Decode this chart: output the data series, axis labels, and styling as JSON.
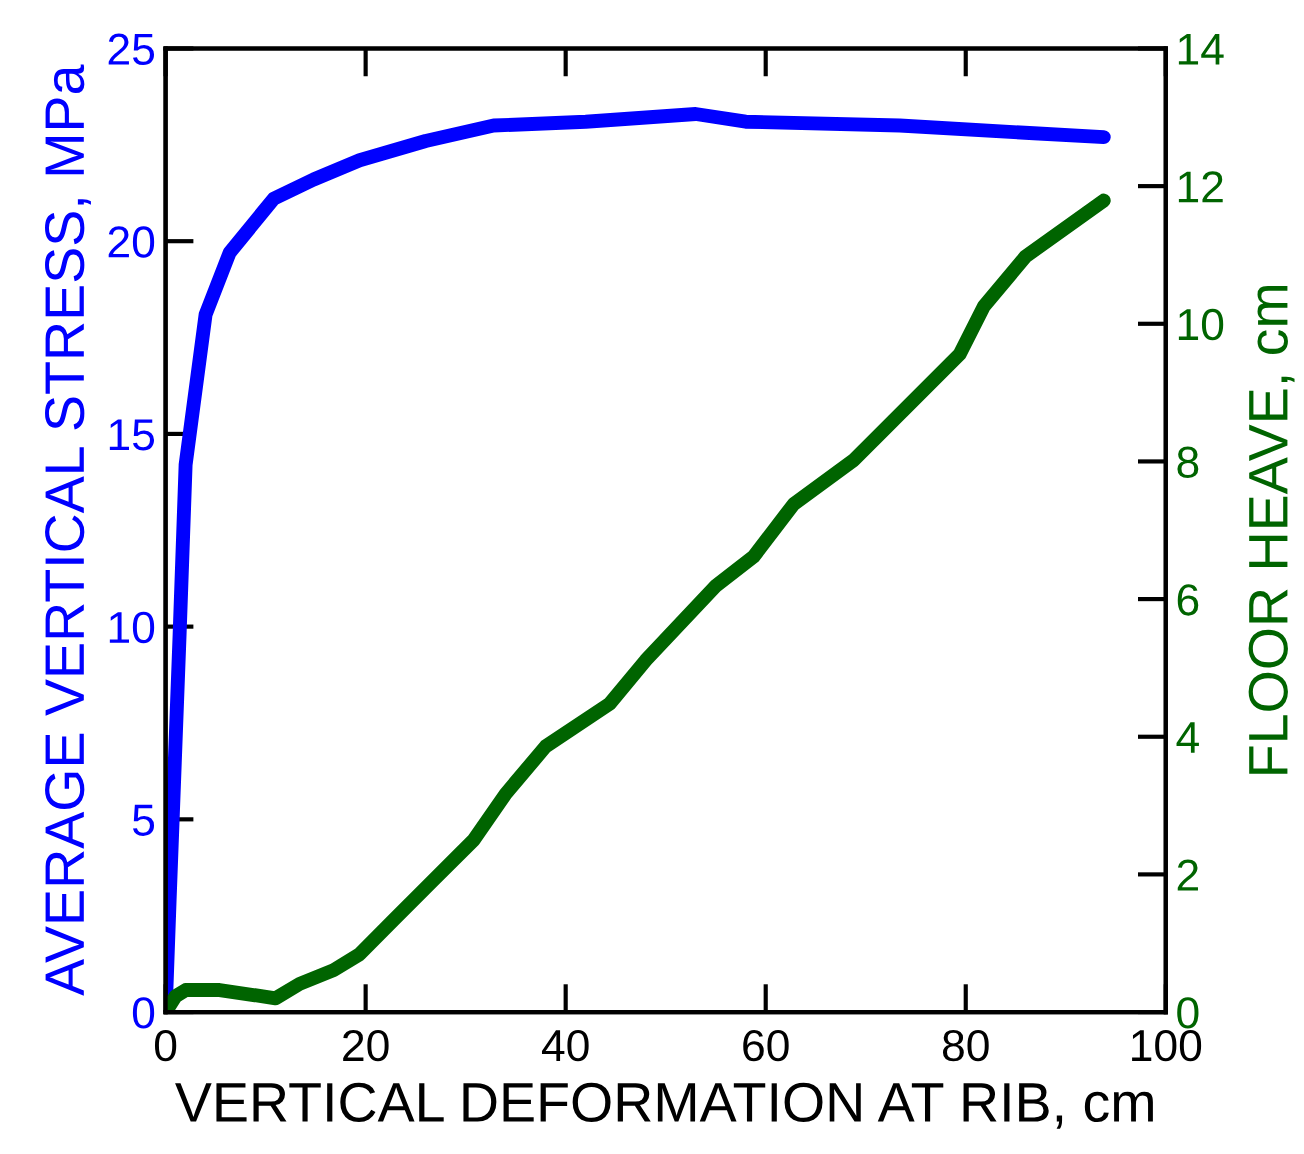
{
  "chart_data": {
    "type": "line",
    "xlabel": "VERTICAL DEFORMATION AT RIB, cm",
    "ylabel": "AVERAGE VERTICAL STRESS, MPa",
    "y2label": "FLOOR HEAVE, cm",
    "xlim": [
      0,
      100
    ],
    "xticks": [
      0,
      20,
      40,
      60,
      80,
      100
    ],
    "ylim": [
      0,
      25
    ],
    "yticks": [
      0,
      5,
      10,
      15,
      20,
      25
    ],
    "y2lim": [
      0,
      14
    ],
    "y2ticks": [
      0,
      2,
      4,
      6,
      8,
      10,
      12,
      14
    ],
    "grid": false,
    "legend": false,
    "line_style": "solid",
    "marker": "none",
    "series": [
      {
        "color": "#0000ff",
        "x": [
          0,
          0.4,
          1.4,
          2,
          4,
          6.4,
          10.8,
          14.8,
          19.4,
          26,
          32.8,
          42,
          53,
          58,
          73.4,
          86.8,
          93.8
        ],
        "values": [
          0,
          2.9,
          9.8,
          14.2,
          18.1,
          19.7,
          21.1,
          21.6,
          22.1,
          22.6,
          23.0,
          23.1,
          23.3,
          23.1,
          23.0,
          22.8,
          22.7
        ]
      },
      {
        "color": "#006400",
        "axis": "y2",
        "x": [
          0,
          1,
          2,
          5.4,
          11,
          13.4,
          16.8,
          19.4,
          22.8,
          26.8,
          30.8,
          34,
          38,
          44.4,
          48,
          55,
          58.8,
          62.8,
          68.8,
          72.8,
          79.4,
          81.8,
          86,
          93.8
        ],
        "values": [
          0,
          0.23,
          0.32,
          0.32,
          0.2,
          0.41,
          0.61,
          0.84,
          1.34,
          1.92,
          2.5,
          3.17,
          3.86,
          4.48,
          5.11,
          6.19,
          6.62,
          7.38,
          8.02,
          8.6,
          9.56,
          10.25,
          10.98,
          11.79
        ]
      }
    ]
  }
}
